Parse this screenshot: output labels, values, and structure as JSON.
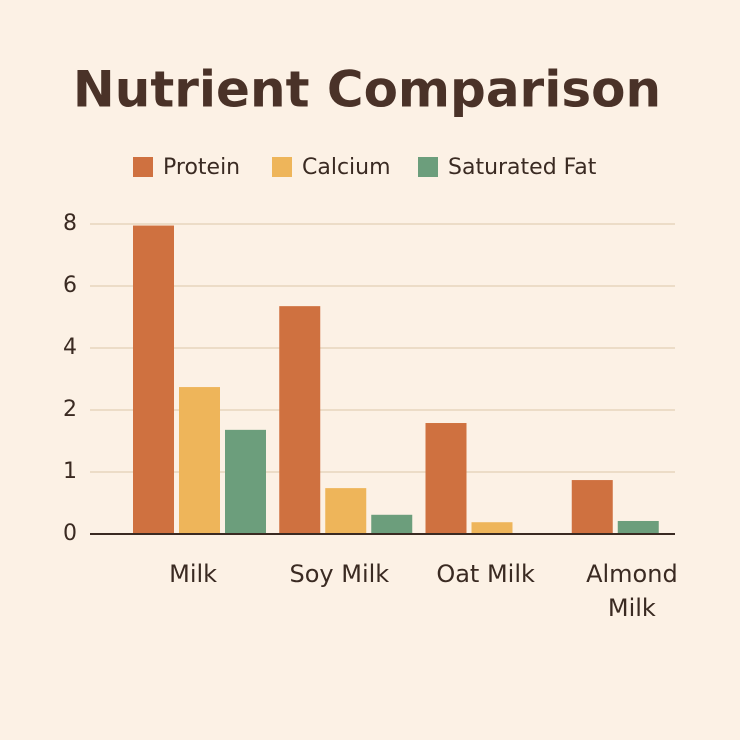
{
  "chart_data": {
    "type": "bar",
    "title": "Nutrient Comparison",
    "categories": [
      "Milk",
      "Soy Milk",
      "Oat Milk",
      "Almond Milk"
    ],
    "series": [
      {
        "name": "Protein",
        "color": "#cf7140",
        "values": [
          7.95,
          5.35,
          1.79,
          0.87
        ]
      },
      {
        "name": "Calcium",
        "color": "#eeb55a",
        "values": [
          2.74,
          0.74,
          0.19,
          null
        ]
      },
      {
        "name": "Saturated Fat",
        "color": "#6c9e7c",
        "values": [
          1.68,
          0.31,
          null,
          0.21
        ]
      }
    ],
    "ylim": [
      0,
      8
    ],
    "yticks": [
      0,
      1,
      2,
      4,
      6,
      8
    ],
    "grid": true
  }
}
